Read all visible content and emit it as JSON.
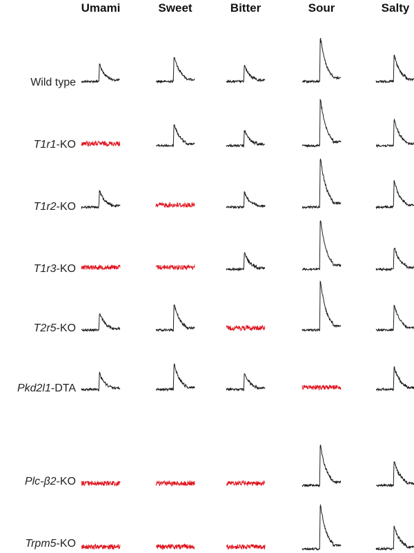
{
  "columns": [
    "Umami",
    "Sweet",
    "Bitter",
    "Sour",
    "Salty"
  ],
  "rows": [
    {
      "gene": "",
      "suffix": "Wild type"
    },
    {
      "gene": "T1r1",
      "suffix": "-KO"
    },
    {
      "gene": "T1r2",
      "suffix": "-KO"
    },
    {
      "gene": "T1r3",
      "suffix": "-KO"
    },
    {
      "gene": "T2r5",
      "suffix": "-KO"
    },
    {
      "gene": "Pkd2l1",
      "suffix": "-DTA"
    },
    {
      "gene": "Plc-β2",
      "suffix": "-KO"
    },
    {
      "gene": "Trpm5",
      "suffix": "-KO"
    }
  ],
  "responses": [
    [
      1,
      1,
      1,
      1,
      1
    ],
    [
      0,
      1,
      1,
      1,
      1
    ],
    [
      1,
      0,
      1,
      1,
      1
    ],
    [
      0,
      0,
      1,
      1,
      1
    ],
    [
      1,
      1,
      0,
      1,
      1
    ],
    [
      1,
      1,
      1,
      0,
      1
    ],
    [
      0,
      0,
      0,
      1,
      1
    ],
    [
      0,
      0,
      0,
      1,
      1
    ]
  ],
  "peak_levels": {
    "Umami": 0.3,
    "Sweet": 0.45,
    "Bitter": 0.27,
    "Sour": 0.85,
    "Salty": 0.45
  },
  "colors": {
    "response_trace": "#1a1a1a",
    "absent_response_trace": "#e0141e",
    "text": "#111111"
  }
}
